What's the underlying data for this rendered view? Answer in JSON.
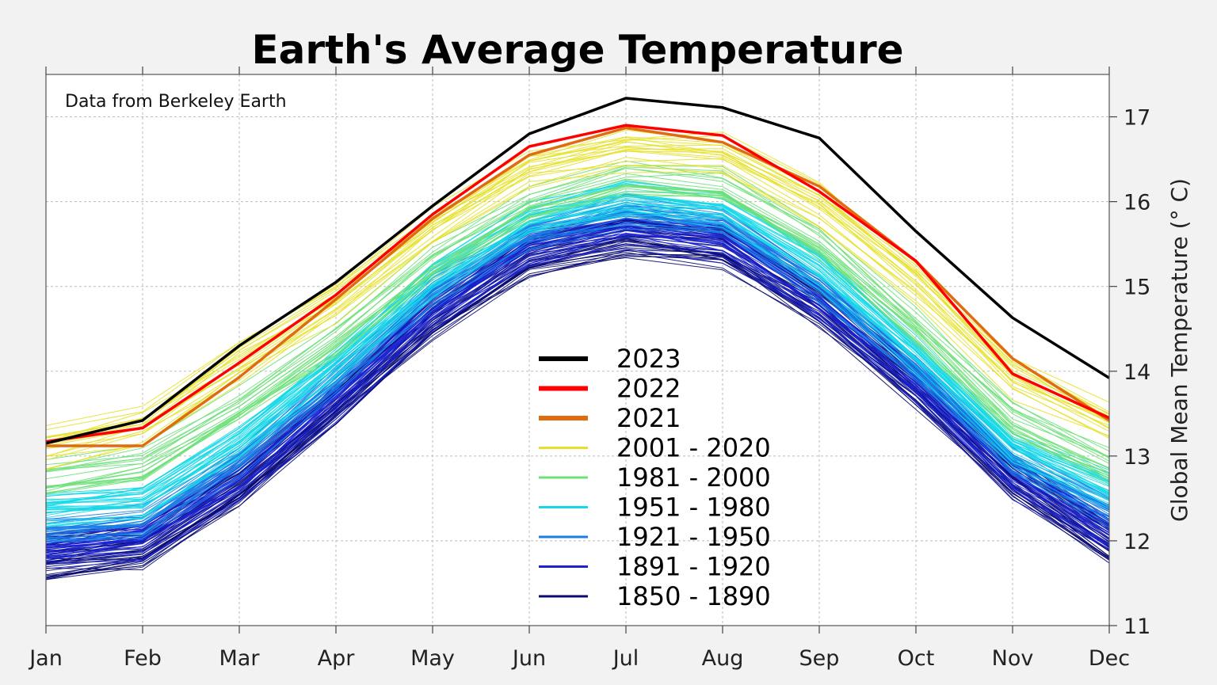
{
  "chart_data": {
    "type": "line",
    "title": "Earth's Average Temperature",
    "annotation": "Data from Berkeley Earth",
    "xlabel": "",
    "ylabel": "Global Mean Temperature (° C)",
    "categories": [
      "Jan",
      "Feb",
      "Mar",
      "Apr",
      "May",
      "Jun",
      "Jul",
      "Aug",
      "Sep",
      "Oct",
      "Nov",
      "Dec"
    ],
    "ylim": [
      11,
      17.5
    ],
    "yticks": [
      11,
      12,
      13,
      14,
      15,
      16,
      17
    ],
    "y_axis_side": "right",
    "grid": true,
    "legend_position": "center",
    "highlight_series": [
      {
        "name": "2023",
        "color": "#000000",
        "values": [
          13.15,
          13.42,
          14.3,
          15.05,
          15.95,
          16.8,
          17.22,
          17.11,
          16.75,
          15.65,
          14.63,
          13.92
        ]
      },
      {
        "name": "2022",
        "color": "#ff0000",
        "values": [
          13.17,
          13.33,
          14.1,
          14.9,
          15.85,
          16.65,
          16.9,
          16.78,
          16.12,
          15.3,
          13.97,
          13.45
        ]
      },
      {
        "name": "2021",
        "color": "#e06c10",
        "values": [
          13.12,
          13.12,
          13.93,
          14.85,
          15.8,
          16.55,
          16.87,
          16.7,
          16.18,
          15.3,
          14.15,
          13.42
        ]
      }
    ],
    "period_groups": [
      {
        "name": "2001 - 2020",
        "color": "#e5e12a",
        "count": 20,
        "base": [
          13.1,
          13.35,
          14.1,
          14.82,
          15.68,
          16.38,
          16.62,
          16.55,
          15.95,
          15.05,
          13.95,
          13.38
        ],
        "spread": 0.22
      },
      {
        "name": "1981 - 2000",
        "color": "#6ee07a",
        "count": 20,
        "base": [
          12.75,
          12.9,
          13.6,
          14.4,
          15.3,
          16.0,
          16.28,
          16.2,
          15.55,
          14.55,
          13.45,
          12.9
        ],
        "spread": 0.2
      },
      {
        "name": "1951 - 1980",
        "color": "#16d8e8",
        "count": 30,
        "base": [
          12.35,
          12.45,
          13.15,
          14.05,
          15.05,
          15.78,
          16.02,
          15.9,
          15.2,
          14.2,
          13.08,
          12.6
        ],
        "spread": 0.18
      },
      {
        "name": "1921 - 1950",
        "color": "#1a7ee6",
        "count": 30,
        "base": [
          12.1,
          12.2,
          12.95,
          13.9,
          14.92,
          15.62,
          15.88,
          15.75,
          15.0,
          14.05,
          12.95,
          12.35
        ],
        "spread": 0.18
      },
      {
        "name": "1891 - 1920",
        "color": "#1a22d2",
        "count": 30,
        "base": [
          11.85,
          11.98,
          12.68,
          13.65,
          14.68,
          15.42,
          15.68,
          15.52,
          14.8,
          13.85,
          12.75,
          12.05
        ],
        "spread": 0.2
      },
      {
        "name": "1850 - 1890",
        "color": "#0a0a72",
        "count": 41,
        "base": [
          11.8,
          11.92,
          12.65,
          13.62,
          14.62,
          15.38,
          15.62,
          15.48,
          14.78,
          13.82,
          12.75,
          12.0
        ],
        "spread": 0.22
      }
    ]
  }
}
